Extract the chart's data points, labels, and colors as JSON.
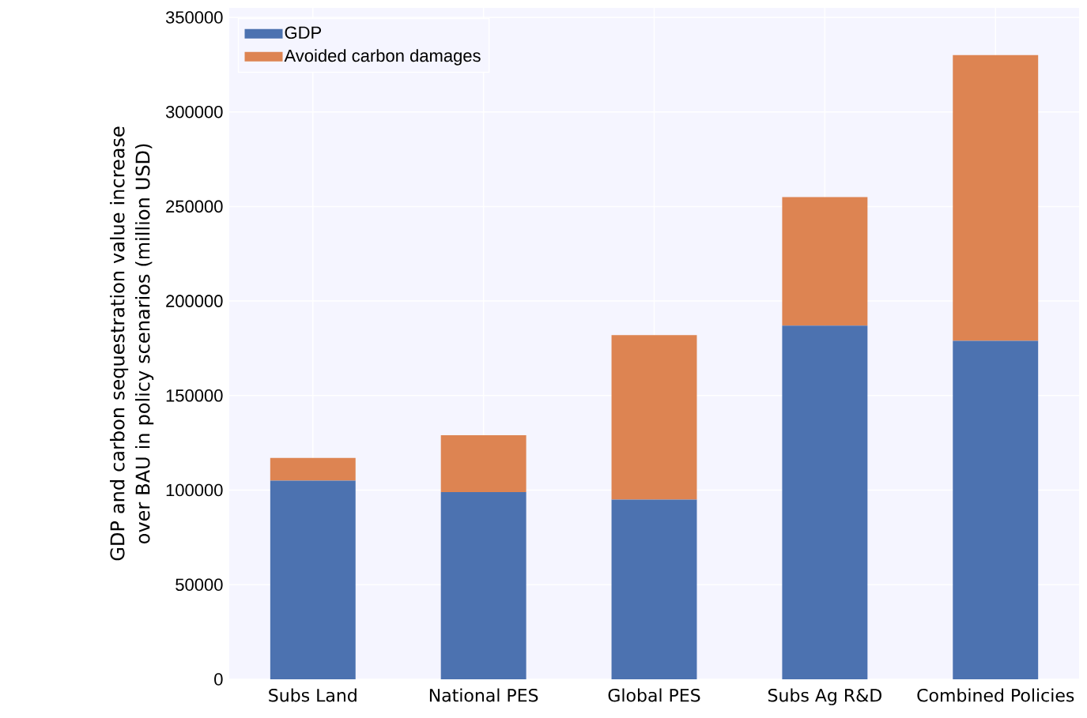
{
  "chart_data": {
    "type": "bar",
    "stacked": true,
    "ylabel": "GDP and carbon sequestration value increase over BAU in policy scenarios (million USD)",
    "categories": [
      "Subs Land",
      "National PES",
      "Global PES",
      "Subs Ag R&D",
      "Combined Policies"
    ],
    "series": [
      {
        "name": "GDP",
        "color": "#4c72b0",
        "values": [
          105000,
          99000,
          95000,
          187000,
          179000
        ]
      },
      {
        "name": "Avoided carbon damages",
        "color": "#dd8452",
        "values": [
          12000,
          30000,
          87000,
          68000,
          151000
        ]
      }
    ],
    "ylim": [
      0,
      355000
    ],
    "yticks": [
      0,
      50000,
      100000,
      150000,
      200000,
      250000,
      300000,
      350000
    ],
    "grid": true,
    "legend": "top left"
  }
}
